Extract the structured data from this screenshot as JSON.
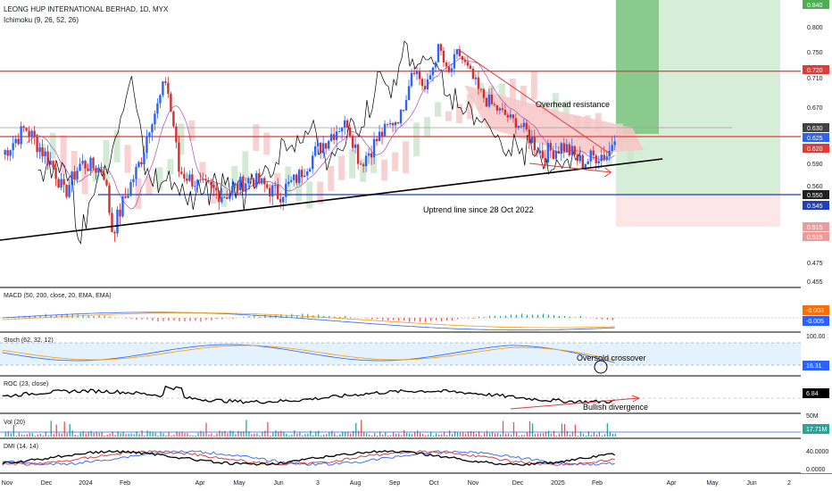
{
  "header": {
    "title": "LEONG HUP INTERNATIONAL BERHAD, 1D, MYX",
    "indicator": "Ichimoku (9, 26, 52, 26)"
  },
  "colors": {
    "up": "#2962ff",
    "down": "#d32f2f",
    "resistance": "#e53935",
    "support": "#1e3fbf",
    "cloud_bull": "#c8e6c9",
    "cloud_bear": "#f8c5c5",
    "lagging": "#000000",
    "tenkan": "#2962ff",
    "kijun": "#b71c1c",
    "macd": "#2962ff",
    "signal": "#ff9800",
    "stoch_k": "#2962ff",
    "stoch_d": "#ff9800",
    "dmi_plus": "#2962ff",
    "dmi_minus": "#d32f2f",
    "adx": "#000000",
    "target_zone": "#2e7d32",
    "stop_zone": "#ef9a9a"
  },
  "annotations": {
    "resistance": "Overhead resistance",
    "uptrend": "Uptrend line since 28 Oct 2022",
    "oversold": "Oversold crossover",
    "divergence": "Bullish divergence"
  },
  "panels": {
    "macd": "MACD (50, 200, close, 20, EMA, EMA)",
    "stoch": "Stoch (62, 32, 12)",
    "roc": "ROC (23, close)",
    "vol": "Vol (20)",
    "dmi": "DMI (14, 14)"
  },
  "price_axis": {
    "ticks": [
      "0.840",
      "0.800",
      "0.750",
      "0.710",
      "0.670",
      "0.630",
      "0.590",
      "0.560",
      "0.550",
      "0.515",
      "0.475",
      "0.455"
    ],
    "badges": [
      {
        "label": "0.840",
        "color": "#4caf50"
      },
      {
        "label": "0.720",
        "color": "#e53935"
      },
      {
        "label": "0.630",
        "color": "#424242"
      },
      {
        "label": "0.625",
        "color": "#2962ff"
      },
      {
        "label": "0.620",
        "color": "#e53935"
      },
      {
        "label": "0.550",
        "color": "#212121"
      },
      {
        "label": "0.545",
        "color": "#1e3fbf"
      },
      {
        "label": "0.515",
        "color": "#ef9a9a"
      },
      {
        "label": "0.515",
        "color": "#ef9a9a"
      }
    ]
  },
  "macd_axis": {
    "badges": [
      {
        "label": "-0.003",
        "color": "#ff6d00"
      },
      {
        "label": "-0.005",
        "color": "#2962ff"
      }
    ]
  },
  "stoch_axis": {
    "top": "100.00",
    "badge": {
      "label": "16.31",
      "color": "#2962ff"
    }
  },
  "roc_axis": {
    "badge": {
      "label": "6.84",
      "color": "#000000"
    }
  },
  "vol_axis": {
    "tick": "50M",
    "badge": {
      "label": "17.71M",
      "color": "#26a69a"
    }
  },
  "dmi_axis": {
    "top": "40.0000",
    "bottom": "0.0000"
  },
  "time_axis": [
    "Nov",
    "Dec",
    "2024",
    "Feb",
    "Apr",
    "May",
    "Jun",
    "3",
    "Aug",
    "Sep",
    "Oct",
    "Nov",
    "Dec",
    "2025",
    "Feb",
    "Apr",
    "May",
    "Jun",
    "2"
  ],
  "chart_data": {
    "type": "candlestick",
    "title": "LEONG HUP INTERNATIONAL BERHAD, 1D, MYX",
    "y_range": [
      0.455,
      0.84
    ],
    "levels": {
      "resistance": 0.72,
      "overhead_zone": [
        0.62,
        0.63
      ],
      "support": 0.55,
      "last_close": 0.625,
      "target": 0.84,
      "stop": 0.515
    },
    "price_path": [
      [
        "2023-10-28",
        0.6
      ],
      [
        "2023-11-15",
        0.63
      ],
      [
        "2023-12-05",
        0.59
      ],
      [
        "2023-12-15",
        0.55
      ],
      [
        "2023-12-28",
        0.59
      ],
      [
        "2024-01-15",
        0.58
      ],
      [
        "2024-01-22",
        0.51
      ],
      [
        "2024-02-05",
        0.56
      ],
      [
        "2024-02-15",
        0.6
      ],
      [
        "2024-02-25",
        0.66
      ],
      [
        "2024-03-05",
        0.71
      ],
      [
        "2024-03-15",
        0.58
      ],
      [
        "2024-04-01",
        0.56
      ],
      [
        "2024-04-20",
        0.55
      ],
      [
        "2024-05-10",
        0.57
      ],
      [
        "2024-06-01",
        0.55
      ],
      [
        "2024-06-15",
        0.57
      ],
      [
        "2024-06-28",
        0.6
      ],
      [
        "2024-07-10",
        0.62
      ],
      [
        "2024-07-25",
        0.64
      ],
      [
        "2024-08-05",
        0.59
      ],
      [
        "2024-08-20",
        0.62
      ],
      [
        "2024-09-05",
        0.65
      ],
      [
        "2024-09-15",
        0.73
      ],
      [
        "2024-09-25",
        0.69
      ],
      [
        "2024-10-05",
        0.76
      ],
      [
        "2024-10-12",
        0.71
      ],
      [
        "2024-10-20",
        0.75
      ],
      [
        "2024-11-05",
        0.69
      ],
      [
        "2024-11-20",
        0.66
      ],
      [
        "2024-12-05",
        0.63
      ],
      [
        "2024-12-20",
        0.6
      ],
      [
        "2025-01-05",
        0.61
      ],
      [
        "2025-01-20",
        0.59
      ],
      [
        "2025-02-01",
        0.6
      ],
      [
        "2025-02-10",
        0.6
      ],
      [
        "2025-02-15",
        0.625
      ]
    ],
    "trendlines": [
      {
        "name": "Uptrend line since 28 Oct 2022",
        "from": [
          "2023-10-26",
          0.5
        ],
        "to": [
          "2025-03-25",
          0.595
        ]
      },
      {
        "name": "Overhead resistance",
        "from": [
          "2024-10-20",
          0.755
        ],
        "to": [
          "2025-02-12",
          0.6
        ]
      }
    ]
  }
}
